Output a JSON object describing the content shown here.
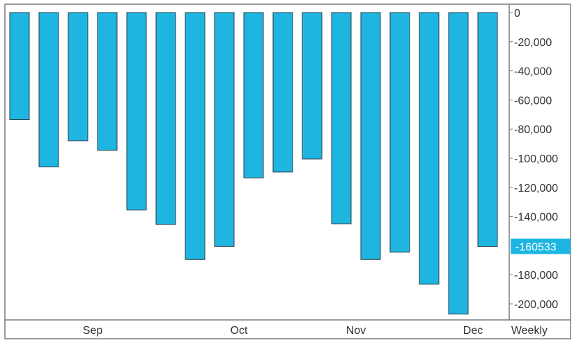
{
  "chart_data": {
    "type": "bar",
    "title": "",
    "xlabel": "",
    "ylabel": "",
    "period_label": "Weekly",
    "ylim": [
      -212000,
      0
    ],
    "yticks": [
      0,
      -20000,
      -40000,
      -60000,
      -80000,
      -100000,
      -120000,
      -140000,
      -180000,
      -200000
    ],
    "ytick_labels": [
      "0",
      "-20,000",
      "-40,000",
      "-60,000",
      "-80,000",
      "-100,000",
      "-120,000",
      "-140,000",
      "-180,000",
      "-200,000"
    ],
    "x_month_labels": [
      {
        "label": "Sep",
        "bar_index": 2.5
      },
      {
        "label": "Oct",
        "bar_index": 7.5
      },
      {
        "label": "Nov",
        "bar_index": 11.5
      },
      {
        "label": "Dec",
        "bar_index": 15.5
      }
    ],
    "values": [
      -73500,
      -106000,
      -88000,
      -94500,
      -135500,
      -145500,
      -169500,
      -160500,
      -113500,
      -109500,
      -100500,
      -145000,
      -169500,
      -164500,
      -186500,
      -207000,
      -160533
    ],
    "last_value_label": "-160533",
    "bar_color": "#1eb6e1",
    "bar_stroke": "#2a3a44",
    "highlight_color": "#1eb6e1"
  }
}
